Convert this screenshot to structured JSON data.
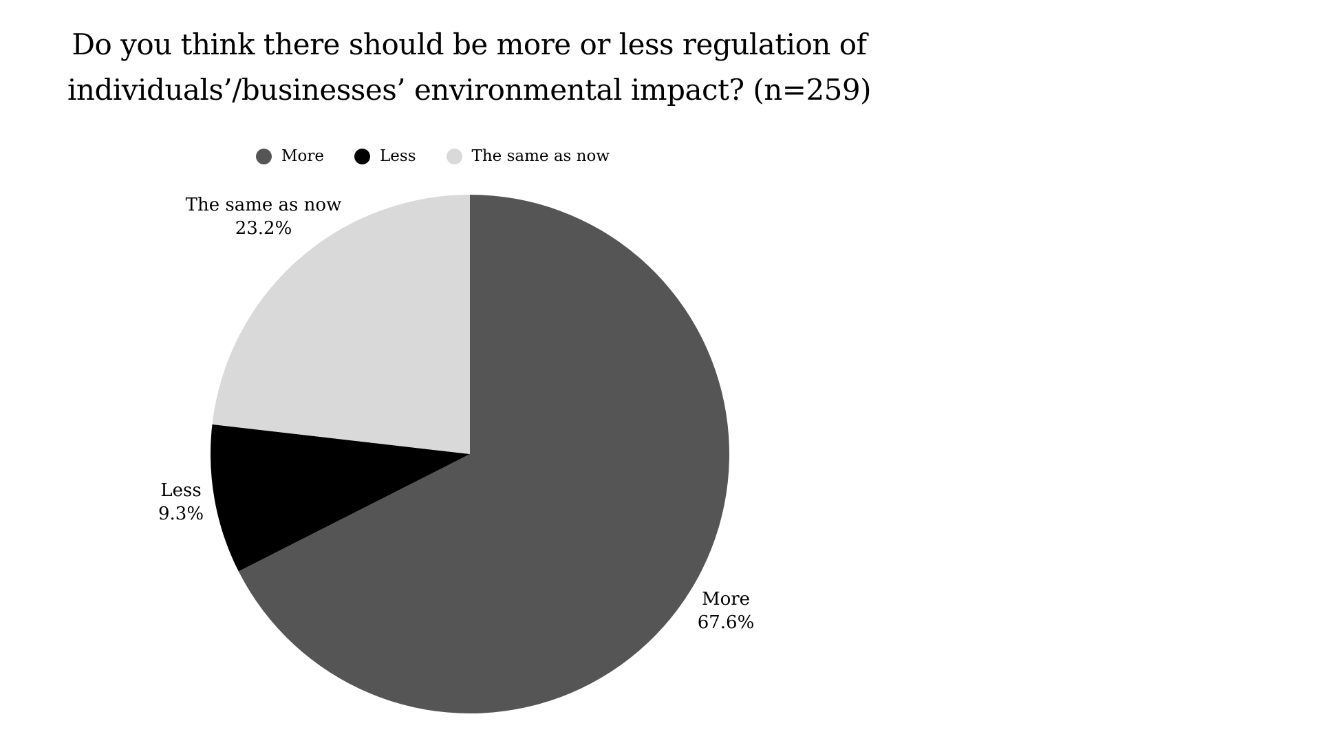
{
  "header": {
    "title_line1": "Do you think there should be more or less regulation of",
    "title_line2": "individuals’/businesses’ environmental impact? (n=259)"
  },
  "chart_data": {
    "type": "pie",
    "title": "Do you think there should be more or less regulation of individuals’/businesses’ environmental impact? (n=259)",
    "n": 259,
    "unit": "percent",
    "start_angle": "12 o'clock, clockwise",
    "legend_position": "top",
    "background_color": "#ffffff",
    "text_color": "#000000",
    "slices": [
      {
        "label": "More",
        "value": 67.6,
        "pct_label": "67.6%",
        "color": "#555555"
      },
      {
        "label": "Less",
        "value": 9.3,
        "pct_label": "9.3%",
        "color": "#000000"
      },
      {
        "label": "The same as now",
        "value": 23.2,
        "pct_label": "23.2%",
        "color": "#d9d9d9"
      }
    ]
  }
}
